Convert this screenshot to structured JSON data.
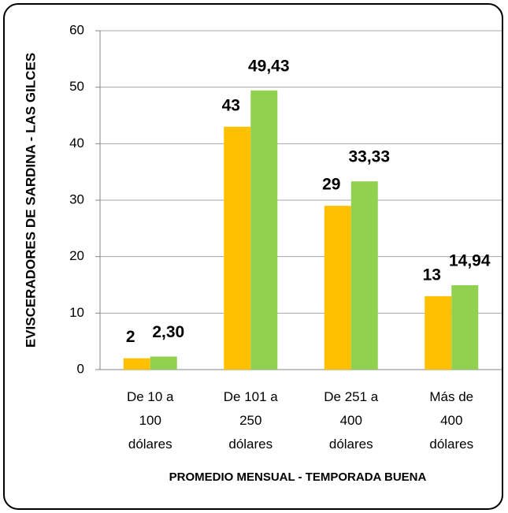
{
  "chart_data": {
    "type": "bar",
    "y_label": "EVISCERADORES DE SARDINA - LAS GILCES",
    "x_label": "PROMEDIO MENSUAL - TEMPORADA BUENA",
    "categories": [
      "De 10 a 100 dólares",
      "De 101 a 250 dólares",
      "De 251 a 400 dólares",
      "Más de 400 dólares"
    ],
    "series": [
      {
        "color": "#ffc000",
        "values": [
          2,
          43,
          29,
          13
        ]
      },
      {
        "color": "#92d050",
        "values": [
          2.3,
          49.43,
          33.33,
          14.94
        ],
        "value_labels": [
          "2,30",
          "49,43",
          "33,33",
          "14,94"
        ]
      }
    ],
    "ylim": [
      0,
      60
    ],
    "yticks": [
      0,
      10,
      20,
      30,
      40,
      50,
      60
    ],
    "grid": true
  }
}
